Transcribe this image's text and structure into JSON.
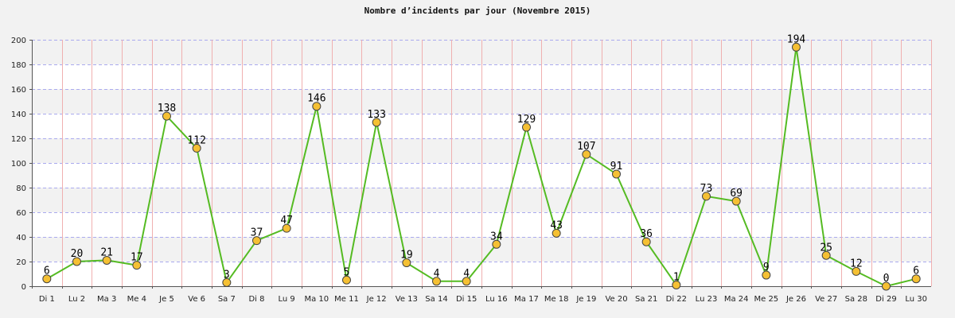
{
  "chart_data": {
    "type": "line",
    "title": "Nombre d’incidents par jour (Novembre 2015)",
    "xlabel": "",
    "ylabel": "",
    "ylim": [
      0,
      200
    ],
    "yticks": [
      0,
      20,
      40,
      60,
      80,
      100,
      120,
      140,
      160,
      180,
      200
    ],
    "grid": true,
    "legend": "none",
    "categories": [
      "Di 1",
      "Lu 2",
      "Ma 3",
      "Me 4",
      "Je 5",
      "Ve 6",
      "Sa 7",
      "Di 8",
      "Lu 9",
      "Ma 10",
      "Me 11",
      "Je 12",
      "Ve 13",
      "Sa 14",
      "Di 15",
      "Lu 16",
      "Ma 17",
      "Me 18",
      "Je 19",
      "Ve 20",
      "Sa 21",
      "Di 22",
      "Lu 23",
      "Ma 24",
      "Me 25",
      "Je 26",
      "Ve 27",
      "Sa 28",
      "Di 29",
      "Lu 30"
    ],
    "values": [
      6,
      20,
      21,
      17,
      138,
      112,
      3,
      37,
      47,
      146,
      5,
      133,
      19,
      4,
      4,
      34,
      129,
      43,
      107,
      91,
      36,
      1,
      73,
      69,
      9,
      194,
      25,
      12,
      0,
      6
    ],
    "colors": {
      "line": "#55bb22",
      "marker_fill": "#f5c033",
      "marker_stroke": "#444444",
      "band_light": "#ffffff",
      "band_dark": "#f2f2f2",
      "vgrid": "#f0b0b0",
      "hgrid": "#aaaaee"
    }
  }
}
